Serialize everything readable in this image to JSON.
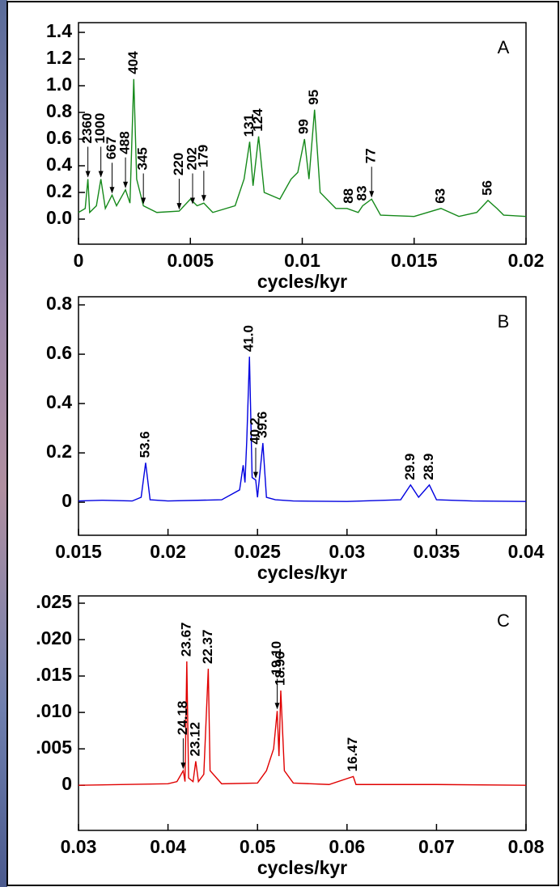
{
  "chart_data": [
    {
      "type": "line",
      "panel": "A",
      "xlabel": "cycles/kyr",
      "xlim": [
        0,
        0.02
      ],
      "ylim": [
        -0.188,
        1.473
      ],
      "xticks": [
        0,
        0.005,
        0.01,
        0.015,
        0.02
      ],
      "yticks": [
        {
          "value": 0,
          "label": "0.0"
        },
        0.2,
        0.4,
        0.6,
        0.8,
        {
          "value": 1,
          "label": "1.0"
        },
        1.2,
        1.4
      ],
      "x": [
        0,
        0.0003,
        0.00042,
        0.0005,
        0.0008,
        0.001,
        0.0012,
        0.0015,
        0.0017,
        0.0021,
        0.0023,
        0.00247,
        0.0026,
        0.0029,
        0.0035,
        0.0045,
        0.005,
        0.0053,
        0.0056,
        0.006,
        0.007,
        0.0074,
        0.00765,
        0.0078,
        0.00805,
        0.0083,
        0.009,
        0.0095,
        0.0098,
        0.0101,
        0.0103,
        0.01055,
        0.0108,
        0.0115,
        0.012,
        0.0125,
        0.0127,
        0.0131,
        0.0135,
        0.015,
        0.0162,
        0.017,
        0.0178,
        0.0183,
        0.0187,
        0.019,
        0.02
      ],
      "series": [
        {
          "color": "#15891a",
          "values": [
            0.05,
            0.08,
            0.3,
            0.05,
            0.1,
            0.3,
            0.08,
            0.18,
            0.1,
            0.22,
            0.12,
            1.05,
            0.3,
            0.1,
            0.05,
            0.06,
            0.15,
            0.1,
            0.12,
            0.05,
            0.1,
            0.3,
            0.58,
            0.25,
            0.62,
            0.2,
            0.15,
            0.3,
            0.35,
            0.6,
            0.3,
            0.82,
            0.2,
            0.08,
            0.08,
            0.05,
            0.1,
            0.15,
            0.03,
            0.02,
            0.08,
            0.02,
            0.05,
            0.14,
            0.08,
            0.03,
            0.02
          ]
        }
      ],
      "annotations": [
        {
          "text": "2360",
          "x": 0.00042,
          "y": 0.3,
          "arrow": true
        },
        {
          "text": "1000",
          "x": 0.001,
          "y": 0.3,
          "arrow": true
        },
        {
          "text": "667",
          "x": 0.0015,
          "y": 0.18,
          "arrow": true
        },
        {
          "text": "488",
          "x": 0.0021,
          "y": 0.22,
          "arrow": true
        },
        {
          "text": "404",
          "x": 0.00247,
          "y": 1.05,
          "arrow": false
        },
        {
          "text": "345",
          "x": 0.0029,
          "y": 0.1,
          "arrow": true
        },
        {
          "text": "220",
          "x": 0.0045,
          "y": 0.06,
          "arrow": true
        },
        {
          "text": "202",
          "x": 0.0051,
          "y": 0.1,
          "arrow": true
        },
        {
          "text": "179",
          "x": 0.0056,
          "y": 0.12,
          "arrow": true
        },
        {
          "text": "131",
          "x": 0.00765,
          "y": 0.58,
          "arrow": false
        },
        {
          "text": "124",
          "x": 0.00805,
          "y": 0.62,
          "arrow": false
        },
        {
          "text": "99",
          "x": 0.0101,
          "y": 0.6,
          "arrow": false
        },
        {
          "text": "95",
          "x": 0.01055,
          "y": 0.82,
          "arrow": false
        },
        {
          "text": "88",
          "x": 0.0121,
          "y": 0.08,
          "arrow": false
        },
        {
          "text": "83",
          "x": 0.0127,
          "y": 0.1,
          "arrow": false
        },
        {
          "text": "77",
          "x": 0.0131,
          "y": 0.15,
          "arrow": true
        },
        {
          "text": "63",
          "x": 0.0162,
          "y": 0.08,
          "arrow": false
        },
        {
          "text": "56",
          "x": 0.0183,
          "y": 0.14,
          "arrow": false
        }
      ]
    },
    {
      "type": "line",
      "panel": "B",
      "xlabel": "cycles/kyr",
      "xlim": [
        0.015,
        0.04
      ],
      "ylim": [
        -0.134,
        0.833
      ],
      "xticks": [
        0.015,
        0.02,
        0.025,
        0.03,
        0.035,
        0.04
      ],
      "yticks": [
        0,
        0.2,
        0.4,
        0.6,
        0.8
      ],
      "x": [
        0.015,
        0.0163,
        0.018,
        0.0185,
        0.01875,
        0.019,
        0.02,
        0.023,
        0.024,
        0.0242,
        0.0243,
        0.0244,
        0.02455,
        0.0247,
        0.0249,
        0.025,
        0.0253,
        0.0255,
        0.026,
        0.027,
        0.03,
        0.033,
        0.03355,
        0.034,
        0.0346,
        0.035,
        0.037,
        0.04
      ],
      "series": [
        {
          "color": "#0000e0",
          "values": [
            0.005,
            0.008,
            0.005,
            0.02,
            0.16,
            0.01,
            0.005,
            0.01,
            0.05,
            0.15,
            0.08,
            0.25,
            0.59,
            0.1,
            0.09,
            0.02,
            0.24,
            0.02,
            0.01,
            0.005,
            0.003,
            0.01,
            0.07,
            0.02,
            0.07,
            0.01,
            0.005,
            0.003
          ]
        }
      ],
      "annotations": [
        {
          "text": "53.6",
          "x": 0.01875,
          "y": 0.16,
          "arrow": false
        },
        {
          "text": "41.0",
          "x": 0.02455,
          "y": 0.59,
          "arrow": false
        },
        {
          "text": "40.2",
          "x": 0.0249,
          "y": 0.09,
          "arrow": true
        },
        {
          "text": "39.6",
          "x": 0.0253,
          "y": 0.24,
          "arrow": false
        },
        {
          "text": "29.9",
          "x": 0.03355,
          "y": 0.07,
          "arrow": false
        },
        {
          "text": "28.9",
          "x": 0.0346,
          "y": 0.07,
          "arrow": false
        }
      ]
    },
    {
      "type": "line",
      "panel": "C",
      "xlabel": "cycles/kyr",
      "xlim": [
        0.03,
        0.08
      ],
      "ylim": [
        -0.0062,
        0.026
      ],
      "xticks": [
        0.03,
        0.04,
        0.05,
        0.06,
        0.07,
        0.08
      ],
      "yticks": [
        0,
        {
          "value": 0.005,
          "label": ".005"
        },
        {
          "value": 0.01,
          "label": ".010"
        },
        {
          "value": 0.015,
          "label": ".015"
        },
        {
          "value": 0.02,
          "label": ".020"
        },
        {
          "value": 0.025,
          "label": ".025"
        }
      ],
      "x": [
        0.03,
        0.04,
        0.041,
        0.0417,
        0.0419,
        0.0421,
        0.0423,
        0.0428,
        0.0431,
        0.0434,
        0.044,
        0.0445,
        0.0447,
        0.046,
        0.05,
        0.051,
        0.0518,
        0.0522,
        0.0524,
        0.0526,
        0.053,
        0.054,
        0.058,
        0.0607,
        0.061,
        0.07,
        0.08
      ],
      "series": [
        {
          "color": "#e00000",
          "values": [
            0,
            0.0002,
            0.0005,
            0.002,
            0.0005,
            0.017,
            0.001,
            0.0005,
            0.0033,
            0.0005,
            0.0015,
            0.016,
            0.002,
            0.0002,
            0.0003,
            0.002,
            0.005,
            0.0102,
            0.004,
            0.013,
            0.002,
            0.0003,
            0.0001,
            0.0012,
            0.0001,
            0.0001,
            0
          ]
        }
      ],
      "annotations": [
        {
          "text": "24.18",
          "x": 0.0417,
          "y": 0.002,
          "arrow": true
        },
        {
          "text": "23.67",
          "x": 0.0421,
          "y": 0.017,
          "arrow": false
        },
        {
          "text": "23.12",
          "x": 0.0431,
          "y": 0.0033,
          "arrow": false
        },
        {
          "text": "22.37",
          "x": 0.0445,
          "y": 0.016,
          "arrow": false
        },
        {
          "text": "19.10",
          "x": 0.0522,
          "y": 0.0102,
          "arrow": true
        },
        {
          "text": "18.96",
          "x": 0.0526,
          "y": 0.013,
          "arrow": false
        },
        {
          "text": "16.47",
          "x": 0.0607,
          "y": 0.0012,
          "arrow": false
        }
      ]
    }
  ]
}
